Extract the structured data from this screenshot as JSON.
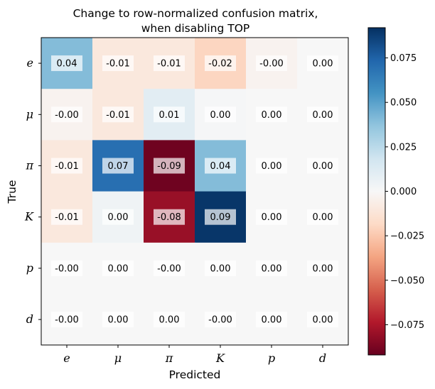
{
  "chart_data": {
    "type": "heatmap",
    "title": [
      "Change to row-normalized confusion matrix,",
      "when disabling TOP"
    ],
    "xlabel": "Predicted",
    "ylabel": "True",
    "x_categories": [
      "e",
      "μ",
      "π",
      "K",
      "p",
      "d"
    ],
    "y_categories": [
      "e",
      "μ",
      "π",
      "K",
      "p",
      "d"
    ],
    "values": [
      [
        0.04,
        -0.01,
        -0.01,
        -0.02,
        -0.003,
        0.0
      ],
      [
        -0.003,
        -0.01,
        0.01,
        0.001,
        0.0,
        0.0
      ],
      [
        -0.01,
        0.07,
        -0.09,
        0.04,
        0.0,
        0.0
      ],
      [
        -0.01,
        0.004,
        -0.08,
        0.09,
        0.0,
        0.0
      ],
      [
        -0.0,
        0.0,
        -0.0,
        0.0,
        0.0,
        0.0
      ],
      [
        -0.0,
        0.0,
        0.0,
        -0.0,
        0.0,
        0.0
      ]
    ],
    "labels": [
      [
        "0.04",
        "-0.01",
        "-0.01",
        "-0.02",
        "-0.00",
        "0.00"
      ],
      [
        "-0.00",
        "-0.01",
        "0.01",
        "0.00",
        "0.00",
        "0.00"
      ],
      [
        "-0.01",
        "0.07",
        "-0.09",
        "0.04",
        "0.00",
        "0.00"
      ],
      [
        "-0.01",
        "0.00",
        "-0.08",
        "0.09",
        "0.00",
        "0.00"
      ],
      [
        "-0.00",
        "0.00",
        "-0.00",
        "0.00",
        "0.00",
        "0.00"
      ],
      [
        "-0.00",
        "0.00",
        "0.00",
        "-0.00",
        "0.00",
        "0.00"
      ]
    ],
    "colormap": "RdBu",
    "vlim": [
      -0.092,
      0.092
    ],
    "colorbar_ticks": [
      0.075,
      0.05,
      0.025,
      0.0,
      -0.025,
      -0.05,
      -0.075
    ],
    "colorbar_tick_labels": [
      "0.075",
      "0.050",
      "0.025",
      "0.000",
      "−0.025",
      "−0.050",
      "−0.075"
    ],
    "grid": false
  }
}
